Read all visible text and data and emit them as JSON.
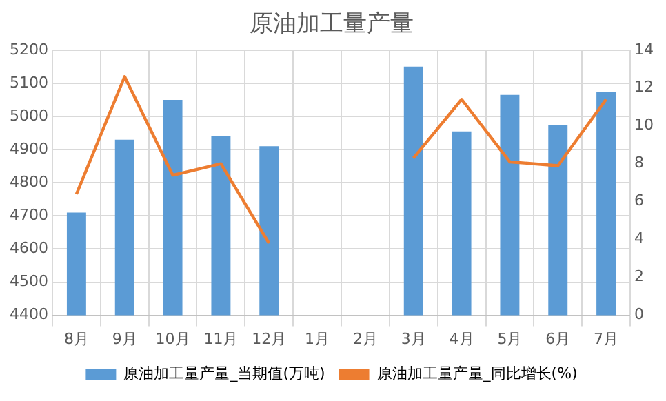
{
  "chart_data": {
    "type": "bar",
    "title": "原油加工量产量",
    "categories": [
      "8月",
      "9月",
      "10月",
      "11月",
      "12月",
      "1月",
      "2月",
      "3月",
      "4月",
      "5月",
      "6月",
      "7月"
    ],
    "series": [
      {
        "name": "原油加工量产量_当期值(万吨)",
        "color": "#5b9bd5",
        "values": [
          4710,
          4930,
          5050,
          4940,
          4910,
          null,
          null,
          5150,
          4955,
          5065,
          4975,
          5075
        ]
      },
      {
        "name": "原油加工量产量_同比增长(%)",
        "type": "line",
        "axis": "y2",
        "color": "#ed7d31",
        "values": [
          6.4,
          12.6,
          7.4,
          8.0,
          3.8,
          null,
          null,
          8.3,
          11.4,
          8.1,
          7.9,
          11.4
        ]
      }
    ],
    "ylim": [
      4400,
      5200
    ],
    "yticks": [
      4400,
      4500,
      4600,
      4700,
      4800,
      4900,
      5000,
      5100,
      5200
    ],
    "y2lim": [
      0,
      14
    ],
    "y2ticks": [
      0,
      2,
      4,
      6,
      8,
      10,
      12,
      14
    ],
    "grid": true,
    "legend": "bottom",
    "marker": "none",
    "line_style": "solid"
  }
}
